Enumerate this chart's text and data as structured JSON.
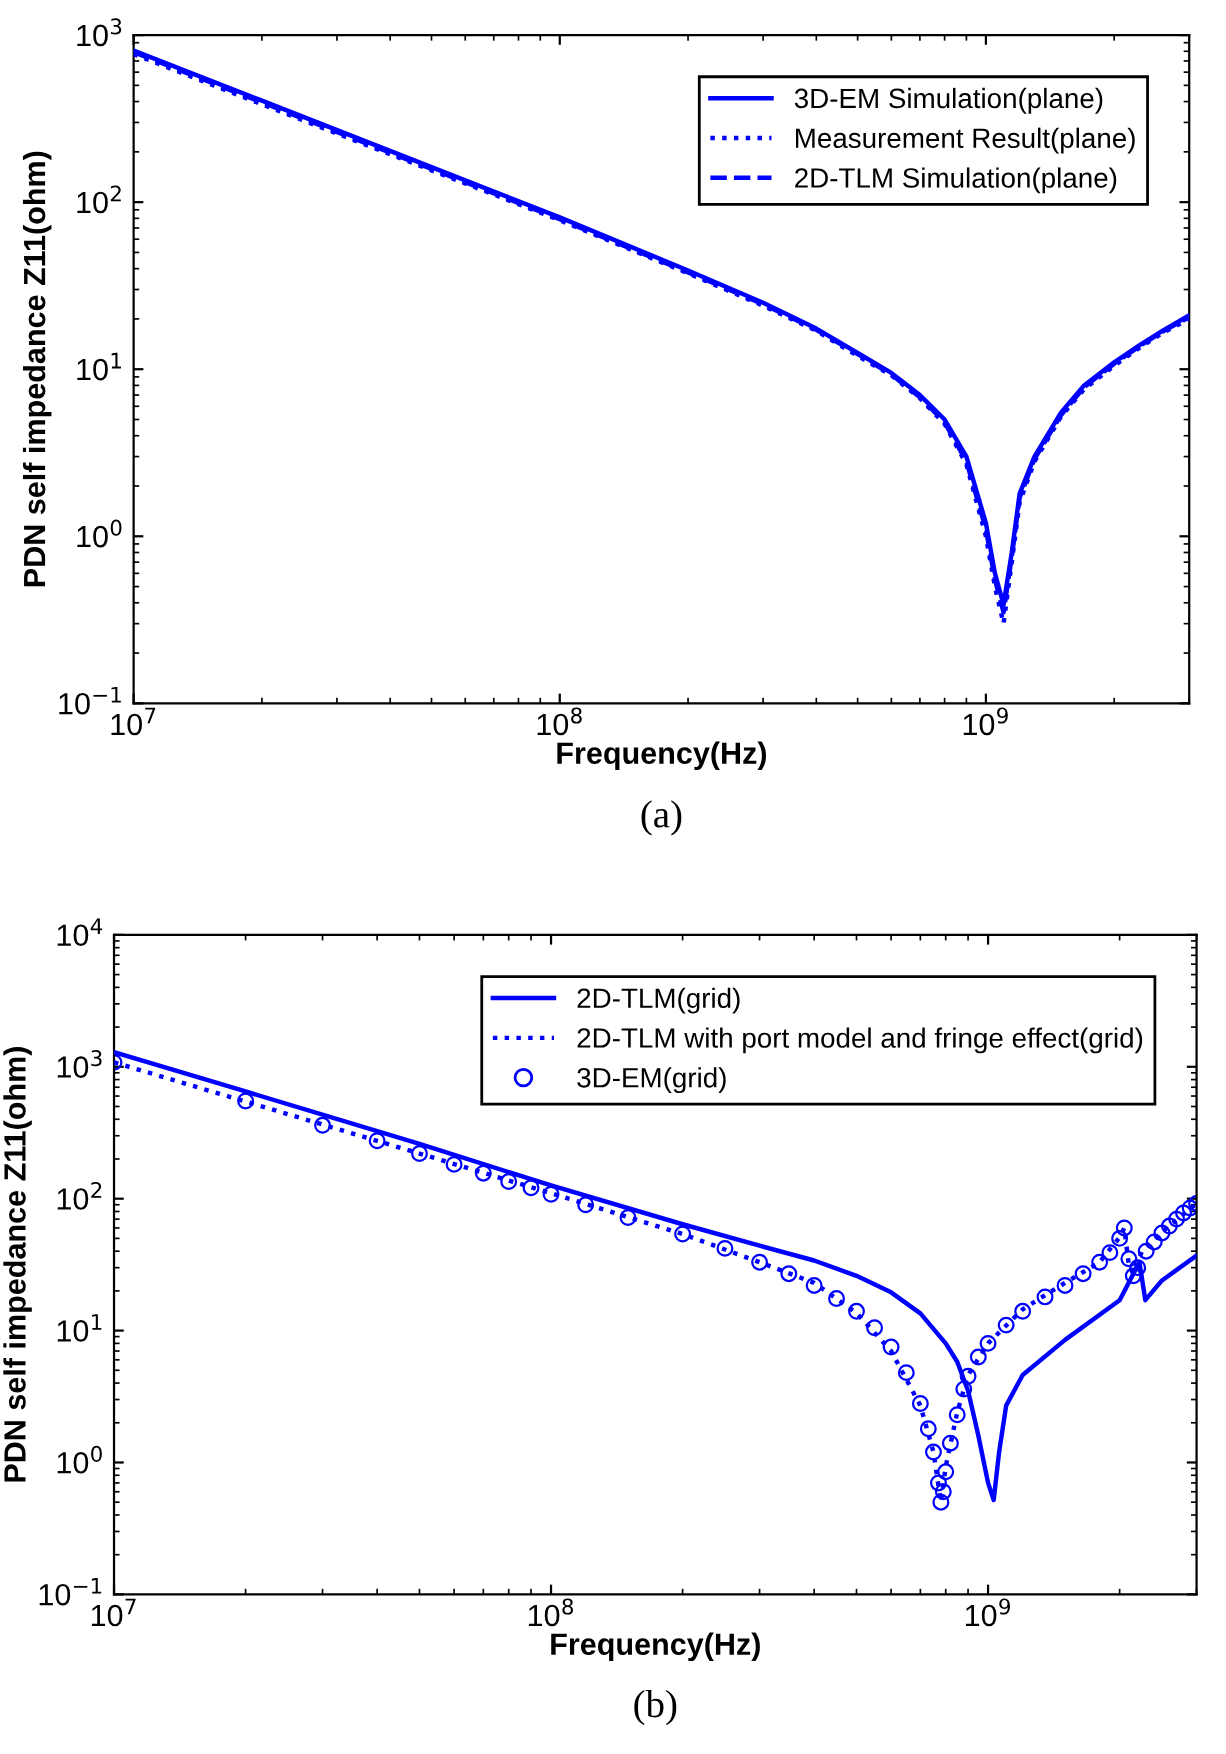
{
  "chart_data": [
    {
      "type": "line",
      "xlabel": "Frequency(Hz)",
      "ylabel": "PDN self impedance Z11(ohm)",
      "log": "xy",
      "grid": false,
      "legend": "top right",
      "xlim": [
        10000000.0,
        3000000000.0
      ],
      "ylim": [
        0.1,
        1000
      ],
      "xticks": [
        {
          "value": 10000000.0,
          "label": "10$^{7}$"
        },
        {
          "value": 100000000.0,
          "label": "10$^{8}$"
        },
        {
          "value": 1000000000.0,
          "label": "10$^{9}$"
        }
      ],
      "yticks": [
        {
          "value": 0.1,
          "label": "10$^{−1}$"
        },
        {
          "value": 1,
          "label": "10$^{0}$"
        },
        {
          "value": 10,
          "label": "10$^{1}$"
        },
        {
          "value": 100,
          "label": "10$^{2}$"
        },
        {
          "value": 1000,
          "label": "10$^{3}$"
        }
      ],
      "annotations": [
        "(a)"
      ],
      "series": [
        {
          "name": "3D-EM Simulation(plane)",
          "color": "#0000ff",
          "line_style": "solid",
          "x": [
            10000000.0,
            20000000.0,
            50000000.0,
            100000000.0,
            200000000.0,
            300000000.0,
            400000000.0,
            500000000.0,
            600000000.0,
            700000000.0,
            800000000.0,
            900000000.0,
            1000000000.0,
            1050000000.0,
            1100000000.0,
            1150000000.0,
            1200000000.0,
            1300000000.0,
            1500000000.0,
            1700000000.0,
            2000000000.0,
            2300000000.0,
            2600000000.0,
            3000000000.0
          ],
          "values": [
            807,
            405,
            162,
            81,
            39,
            25,
            17.5,
            12.5,
            9.5,
            7,
            5,
            3,
            1.2,
            0.6,
            0.39,
            0.8,
            1.8,
            3,
            5.5,
            8,
            11,
            14,
            17,
            21
          ]
        },
        {
          "name": "Measurement Result(plane)",
          "color": "#0000ff",
          "line_style": "dotted",
          "x": [
            10000000.0,
            20000000.0,
            50000000.0,
            100000000.0,
            200000000.0,
            300000000.0,
            400000000.0,
            500000000.0,
            600000000.0,
            700000000.0,
            800000000.0,
            900000000.0,
            1000000000.0,
            1050000000.0,
            1100000000.0,
            1150000000.0,
            1200000000.0,
            1300000000.0,
            1500000000.0,
            1700000000.0,
            2000000000.0,
            2300000000.0,
            2600000000.0,
            3000000000.0
          ],
          "values": [
            770,
            385,
            155,
            78,
            37.5,
            24,
            17,
            12,
            9.2,
            6.7,
            4.7,
            2.7,
            1.0,
            0.5,
            0.3,
            0.7,
            1.6,
            2.8,
            5.2,
            7.6,
            10.5,
            13.5,
            16.5,
            20
          ]
        },
        {
          "name": "2D-TLM Simulation(plane)",
          "color": "#0000ff",
          "line_style": "dashed",
          "x": [
            10000000.0,
            20000000.0,
            50000000.0,
            100000000.0,
            200000000.0,
            300000000.0,
            400000000.0,
            500000000.0,
            600000000.0,
            700000000.0,
            800000000.0,
            900000000.0,
            1000000000.0,
            1050000000.0,
            1100000000.0,
            1150000000.0,
            1200000000.0,
            1300000000.0,
            1500000000.0,
            1700000000.0,
            2000000000.0,
            2300000000.0,
            2600000000.0,
            3000000000.0
          ],
          "values": [
            790,
            395,
            158,
            79,
            38,
            24.5,
            17.2,
            12.3,
            9.3,
            6.8,
            4.8,
            2.8,
            1.1,
            0.55,
            0.35,
            0.75,
            1.7,
            2.9,
            5.3,
            7.8,
            10.8,
            13.8,
            16.8,
            20.5
          ]
        }
      ]
    },
    {
      "type": "line",
      "xlabel": "Frequency(Hz)",
      "ylabel": "PDN self impedance Z11(ohm)",
      "log": "xy",
      "grid": false,
      "legend": "top right",
      "xlim": [
        10000000.0,
        3000000000.0
      ],
      "ylim": [
        0.1,
        10000
      ],
      "xticks": [
        {
          "value": 10000000.0,
          "label": "10$^{7}$"
        },
        {
          "value": 100000000.0,
          "label": "10$^{8}$"
        },
        {
          "value": 1000000000.0,
          "label": "10$^{9}$"
        }
      ],
      "yticks": [
        {
          "value": 0.1,
          "label": "10$^{−1}$"
        },
        {
          "value": 1,
          "label": "10$^{0}$"
        },
        {
          "value": 10,
          "label": "10$^{1}$"
        },
        {
          "value": 100,
          "label": "10$^{2}$"
        },
        {
          "value": 1000,
          "label": "10$^{3}$"
        },
        {
          "value": 10000,
          "label": "10$^{4}$"
        }
      ],
      "annotations": [
        "(b)"
      ],
      "series": [
        {
          "name": "2D-TLM(grid)",
          "color": "#0000ff",
          "line_style": "solid",
          "x": [
            10000000.0,
            20000000.0,
            50000000.0,
            100000000.0,
            200000000.0,
            300000000.0,
            400000000.0,
            500000000.0,
            600000000.0,
            700000000.0,
            800000000.0,
            850000000.0,
            900000000.0,
            950000000.0,
            1000000000.0,
            1030000000.0,
            1060000000.0,
            1100000000.0,
            1200000000.0,
            1500000000.0,
            2000000000.0,
            2220000000.0,
            2290000000.0,
            2500000000.0,
            3000000000.0
          ],
          "values": [
            1290,
            650,
            260,
            126,
            64,
            44,
            34,
            26,
            19.5,
            13.5,
            8,
            5.8,
            3.5,
            1.6,
            0.7,
            0.52,
            1.2,
            2.7,
            4.6,
            8.5,
            17,
            33,
            17,
            24,
            37
          ]
        },
        {
          "name": "2D-TLM with port model and fringe effect(grid)",
          "color": "#0000ff",
          "line_style": "dotted",
          "x": [
            10000000.0,
            20000000.0,
            50000000.0,
            100000000.0,
            200000000.0,
            300000000.0,
            400000000.0,
            500000000.0,
            600000000.0,
            700000000.0,
            750000000.0,
            780000000.0,
            800000000.0,
            850000000.0,
            900000000.0,
            1000000000.0,
            1200000000.0,
            1500000000.0,
            1800000000.0,
            2000000000.0,
            2050000000.0,
            2100000000.0,
            2150000000.0,
            2250000000.0,
            2500000000.0,
            3000000000.0
          ],
          "values": [
            1080,
            545,
            220,
            110,
            54,
            33,
            23,
            13.6,
            7,
            2.7,
            1.2,
            0.5,
            0.93,
            2.4,
            4.6,
            8,
            14.5,
            23,
            33,
            51,
            60,
            31,
            27,
            40,
            56,
            92
          ]
        },
        {
          "name": "3D-EM(grid)",
          "color": "#0000ff",
          "type": "scatter",
          "marker": "circle",
          "x": [
            10000000.0,
            20000000.0,
            30000000.0,
            40000000.0,
            50000000.0,
            60000000.0,
            70000000.0,
            80000000.0,
            90000000.0,
            100000000.0,
            120000000.0,
            150000000.0,
            200000000.0,
            250000000.0,
            300000000.0,
            350000000.0,
            400000000.0,
            450000000.0,
            500000000.0,
            550000000.0,
            600000000.0,
            650000000.0,
            700000000.0,
            730000000.0,
            750000000.0,
            770000000.0,
            780000000.0,
            790000000.0,
            800000000.0,
            820000000.0,
            850000000.0,
            880000000.0,
            900000000.0,
            950000000.0,
            1000000000.0,
            1100000000.0,
            1200000000.0,
            1350000000.0,
            1500000000.0,
            1650000000.0,
            1800000000.0,
            1900000000.0,
            2000000000.0,
            2050000000.0,
            2100000000.0,
            2150000000.0,
            2200000000.0,
            2300000000.0,
            2400000000.0,
            2500000000.0,
            2600000000.0,
            2700000000.0,
            2800000000.0,
            2900000000.0,
            3000000000.0
          ],
          "values": [
            1080,
            550,
            360,
            275,
            220,
            182,
            156,
            135,
            121,
            108,
            90,
            72,
            54,
            42,
            33,
            27,
            22,
            17.5,
            14,
            10.5,
            7.5,
            4.8,
            2.8,
            1.8,
            1.2,
            0.7,
            0.5,
            0.6,
            0.85,
            1.4,
            2.3,
            3.6,
            4.5,
            6.3,
            8,
            11,
            14,
            18,
            22,
            27,
            33,
            39,
            50,
            60,
            35,
            26,
            30,
            40,
            47,
            55,
            62,
            70,
            78,
            85,
            92
          ]
        }
      ]
    }
  ]
}
